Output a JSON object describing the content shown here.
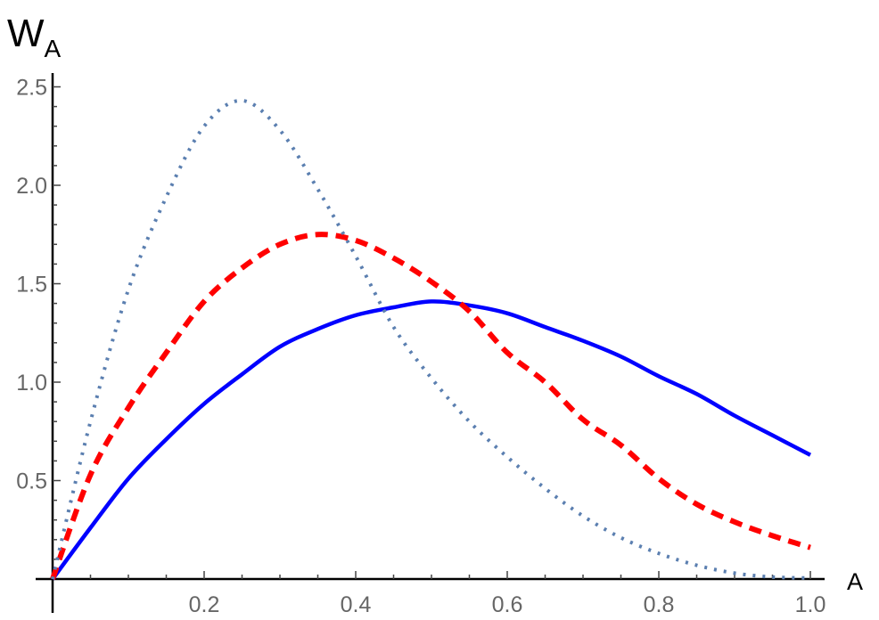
{
  "chart_data": {
    "type": "line",
    "title": "",
    "xlabel": "A",
    "ylabel": "W",
    "ylabel_subscript": "A",
    "xlim": [
      0,
      1.0
    ],
    "ylim": [
      0,
      2.5
    ],
    "grid": false,
    "x_ticks": [
      "0.2",
      "0.4",
      "0.6",
      "0.8",
      "1.0"
    ],
    "y_ticks": [
      "0.5",
      "1.0",
      "1.5",
      "2.0",
      "2.5"
    ],
    "x": [
      0,
      0.05,
      0.1,
      0.15,
      0.2,
      0.25,
      0.3,
      0.35,
      0.4,
      0.45,
      0.5,
      0.55,
      0.6,
      0.65,
      0.7,
      0.75,
      0.8,
      0.85,
      0.9,
      0.95,
      1.0
    ],
    "series": [
      {
        "style": "solid",
        "color": "#0000ff",
        "values": [
          0,
          0.26,
          0.51,
          0.71,
          0.89,
          1.04,
          1.18,
          1.27,
          1.34,
          1.38,
          1.41,
          1.39,
          1.35,
          1.28,
          1.21,
          1.13,
          1.03,
          0.94,
          0.83,
          0.73,
          0.63
        ]
      },
      {
        "style": "dashed",
        "color": "#ff0000",
        "values": [
          0,
          0.53,
          0.87,
          1.15,
          1.41,
          1.58,
          1.7,
          1.75,
          1.72,
          1.63,
          1.51,
          1.36,
          1.15,
          1.0,
          0.81,
          0.68,
          0.51,
          0.38,
          0.29,
          0.22,
          0.16
        ]
      },
      {
        "style": "dotted",
        "color": "#5b7fb0",
        "values": [
          0,
          0.8,
          1.47,
          1.94,
          2.3,
          2.43,
          2.28,
          1.98,
          1.64,
          1.28,
          1.02,
          0.8,
          0.62,
          0.46,
          0.32,
          0.21,
          0.13,
          0.07,
          0.03,
          0.01,
          0.005
        ]
      }
    ]
  }
}
